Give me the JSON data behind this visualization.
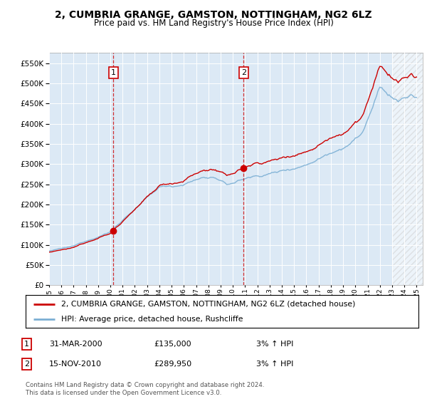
{
  "title": "2, CUMBRIA GRANGE, GAMSTON, NOTTINGHAM, NG2 6LZ",
  "subtitle": "Price paid vs. HM Land Registry's House Price Index (HPI)",
  "legend_line1": "2, CUMBRIA GRANGE, GAMSTON, NOTTINGHAM, NG2 6LZ (detached house)",
  "legend_line2": "HPI: Average price, detached house, Rushcliffe",
  "annotation1_date": "31-MAR-2000",
  "annotation1_price": "£135,000",
  "annotation1_hpi": "3% ↑ HPI",
  "annotation2_date": "15-NOV-2010",
  "annotation2_price": "£289,950",
  "annotation2_hpi": "3% ↑ HPI",
  "footnote": "Contains HM Land Registry data © Crown copyright and database right 2024.\nThis data is licensed under the Open Government Licence v3.0.",
  "sale1_year": 2000.25,
  "sale1_value": 135000,
  "sale2_year": 2010.88,
  "sale2_value": 289950,
  "hpi_color": "#7bafd4",
  "price_color": "#cc0000",
  "background_color": "#dce9f5",
  "hatch_color": "#bbbbbb",
  "ylim_min": 0,
  "ylim_max": 575000,
  "xlim_min": 1995.0,
  "xlim_max": 2025.5,
  "hatch_start": 2023.0,
  "title_fontsize": 10,
  "subtitle_fontsize": 8.5
}
